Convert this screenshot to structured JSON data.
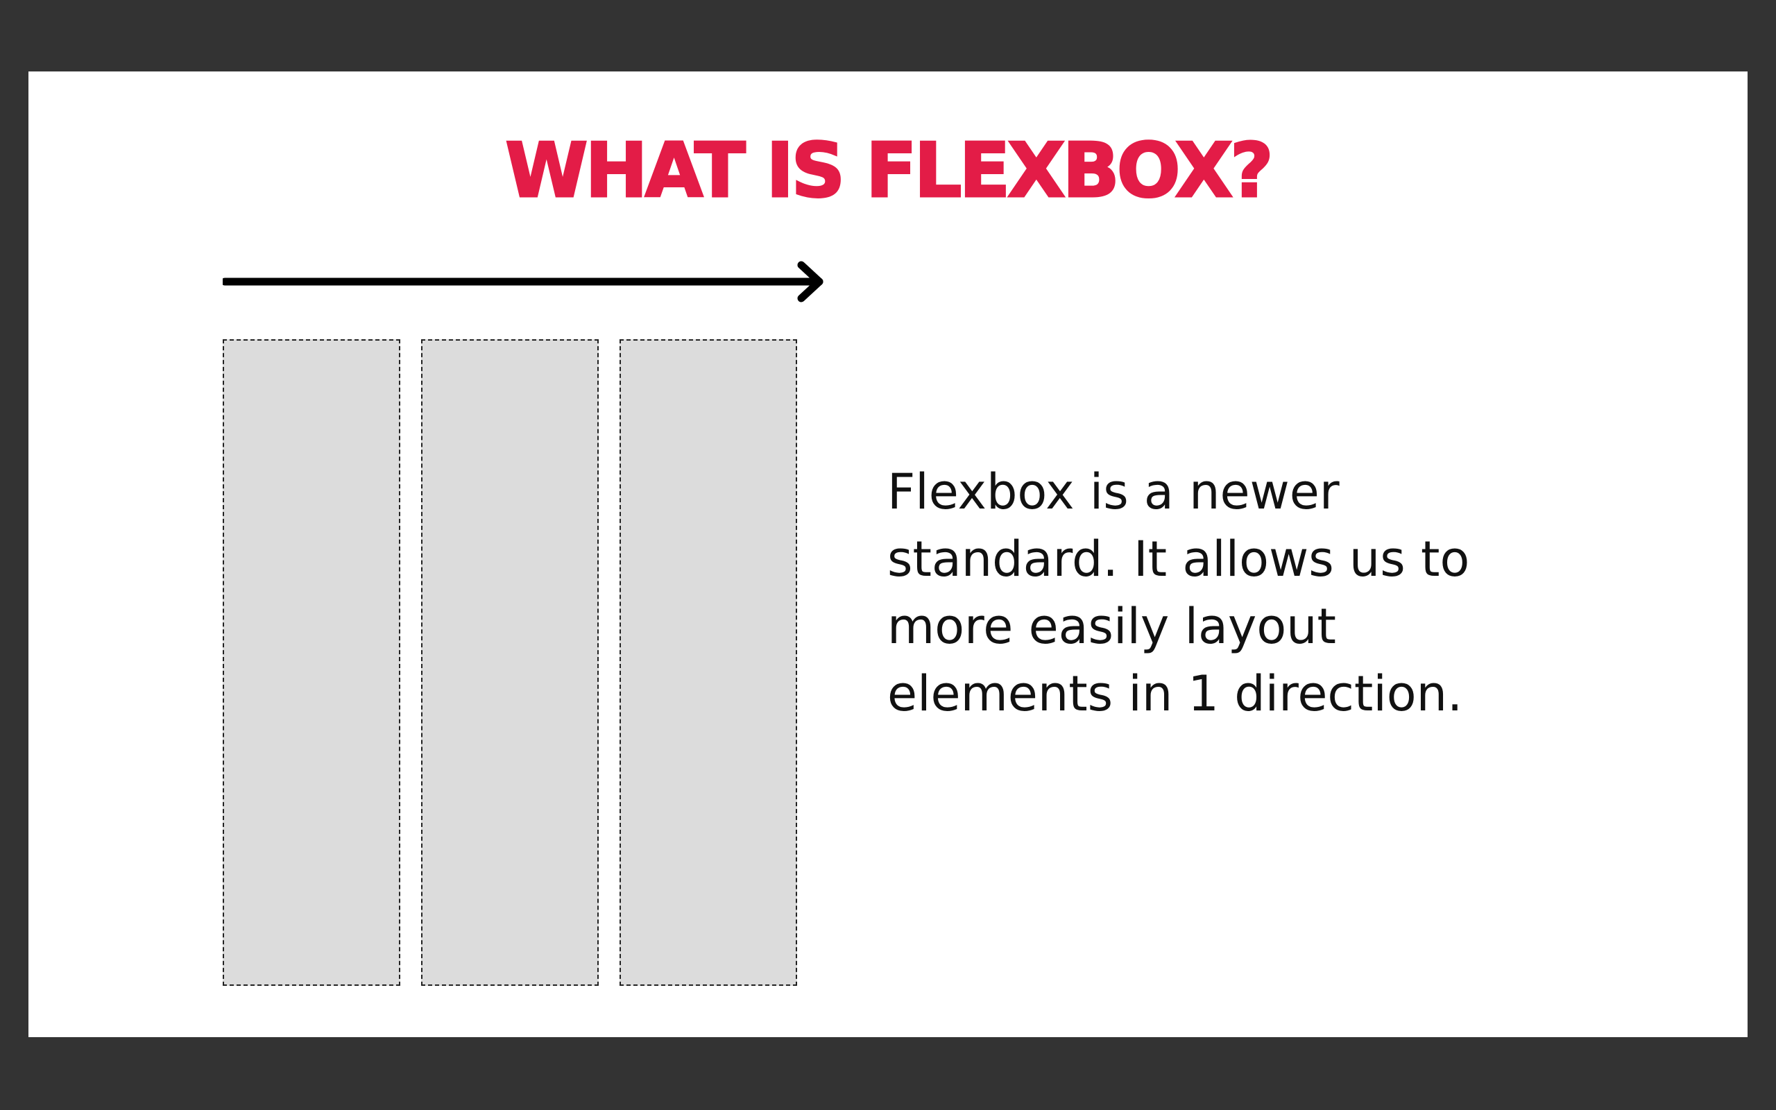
{
  "slide": {
    "title": "WHAT IS FLEXBOX?",
    "title_color": "#E31C47",
    "description_lines": [
      "Flexbox is a newer",
      "standard. It allows us to",
      "more easily layout",
      "elements in 1 direction."
    ],
    "diagram": {
      "arrow_icon": "right-arrow-icon",
      "box_count": 3,
      "box_color": "#DCDCDC"
    }
  }
}
